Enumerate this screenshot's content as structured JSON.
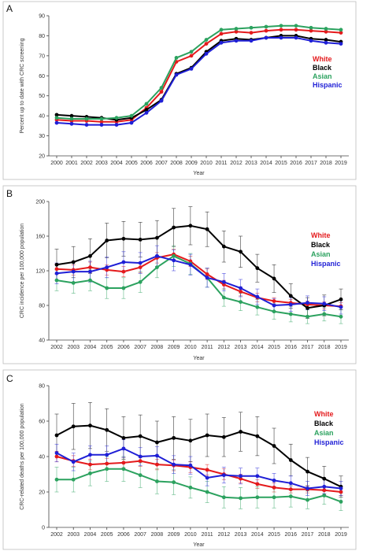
{
  "chart_data": [
    {
      "type": "line",
      "panel": "A",
      "xlabel": "Year",
      "ylabel": "Percent up to date with CRC screening",
      "ylim": [
        20,
        90
      ],
      "yticks": [
        20,
        30,
        40,
        50,
        60,
        70,
        80,
        90
      ],
      "x": [
        2000,
        2001,
        2002,
        2003,
        2004,
        2005,
        2006,
        2007,
        2008,
        2009,
        2010,
        2011,
        2012,
        2013,
        2014,
        2015,
        2016,
        2017,
        2018,
        2019
      ],
      "grid": false,
      "legend": "right",
      "series": [
        {
          "name": "White",
          "color": "#e41a1c",
          "values": [
            38,
            37.5,
            37.5,
            37,
            37,
            38,
            44,
            52,
            67,
            70,
            76,
            81,
            82,
            81.5,
            82.5,
            83,
            83,
            82.5,
            82,
            81.5
          ]
        },
        {
          "name": "Black",
          "color": "#000000",
          "values": [
            40.5,
            40,
            39.5,
            39,
            38,
            39,
            43,
            48,
            61,
            64,
            72,
            77.5,
            78.5,
            78,
            79,
            80,
            80,
            78.5,
            78,
            77
          ]
        },
        {
          "name": "Asian",
          "color": "#2ca25f",
          "values": [
            39,
            38.5,
            38.5,
            38.5,
            39,
            40,
            46,
            54,
            69,
            72,
            78,
            83,
            83.5,
            84,
            84.5,
            85,
            85,
            84,
            83.5,
            83
          ]
        },
        {
          "name": "Hispanic",
          "color": "#1f1fd6",
          "values": [
            36.5,
            36,
            35.5,
            35.5,
            35.5,
            36.5,
            41.5,
            47.5,
            60.5,
            63.5,
            71,
            76.5,
            77.5,
            77.5,
            79,
            79,
            79,
            77.5,
            76.5,
            76
          ]
        }
      ]
    },
    {
      "type": "line",
      "panel": "B",
      "xlabel": "Year",
      "ylabel": "CRC incidence per 100,000 population",
      "ylim": [
        40,
        200
      ],
      "yticks": [
        40,
        80,
        120,
        160,
        200
      ],
      "x": [
        2002,
        2003,
        2004,
        2005,
        2006,
        2007,
        2008,
        2009,
        2010,
        2011,
        2012,
        2013,
        2014,
        2015,
        2016,
        2017,
        2018,
        2019
      ],
      "grid": false,
      "legend": "right",
      "series": [
        {
          "name": "White",
          "color": "#e41a1c",
          "values": [
            122,
            121,
            124,
            121,
            119,
            124,
            135,
            139,
            131,
            116,
            104,
            96,
            89,
            85,
            83,
            81,
            80,
            79
          ],
          "err": [
            6,
            6,
            6,
            6,
            6,
            6,
            6,
            6,
            6,
            6,
            5,
            5,
            5,
            4,
            4,
            4,
            4,
            4
          ]
        },
        {
          "name": "Black",
          "color": "#000000",
          "values": [
            127,
            130,
            137,
            155,
            157,
            156,
            158,
            170,
            172,
            168,
            148,
            142,
            123,
            111,
            91,
            77,
            80,
            87
          ],
          "err": [
            18,
            18,
            20,
            20,
            20,
            20,
            20,
            22,
            22,
            20,
            18,
            18,
            16,
            16,
            14,
            12,
            12,
            12
          ]
        },
        {
          "name": "Asian",
          "color": "#2ca25f",
          "values": [
            109,
            106,
            109,
            100,
            100,
            107,
            124,
            137,
            128,
            112,
            89,
            84,
            78,
            73,
            70,
            67,
            70,
            67
          ],
          "err": [
            12,
            12,
            12,
            12,
            12,
            12,
            12,
            12,
            12,
            11,
            10,
            10,
            9,
            9,
            9,
            8,
            8,
            8
          ]
        },
        {
          "name": "Hispanic",
          "color": "#1f1fd6",
          "values": [
            117,
            119,
            119,
            124,
            130,
            129,
            137,
            132,
            127,
            112,
            107,
            100,
            90,
            80,
            81,
            83,
            82,
            78
          ],
          "err": [
            12,
            12,
            12,
            12,
            12,
            12,
            12,
            12,
            12,
            11,
            10,
            10,
            9,
            8,
            8,
            8,
            8,
            8
          ]
        }
      ]
    },
    {
      "type": "line",
      "panel": "C",
      "xlabel": "Year",
      "ylabel": "CRC-related deaths per 100,000 population",
      "ylim": [
        0,
        80
      ],
      "yticks": [
        0,
        20,
        40,
        60,
        80
      ],
      "x": [
        2002,
        2003,
        2004,
        2005,
        2006,
        2007,
        2008,
        2009,
        2010,
        2011,
        2012,
        2013,
        2014,
        2015,
        2016,
        2017,
        2018,
        2019
      ],
      "grid": false,
      "legend": "right",
      "series": [
        {
          "name": "White",
          "color": "#e41a1c",
          "values": [
            40,
            37.5,
            35.5,
            36,
            36.5,
            37.5,
            35.5,
            35,
            34,
            32.5,
            30,
            27.5,
            24.5,
            22.5,
            21.5,
            21.5,
            21,
            20
          ],
          "err": [
            3,
            3,
            3,
            3,
            3,
            3,
            3,
            3,
            3,
            3,
            3,
            2.5,
            2.5,
            2.5,
            2,
            2,
            2,
            2
          ]
        },
        {
          "name": "Black",
          "color": "#000000",
          "values": [
            52,
            57,
            57.5,
            55,
            50.5,
            51.5,
            48,
            50.5,
            49,
            52,
            51,
            54,
            51.5,
            46,
            38,
            31.5,
            27.5,
            23
          ],
          "err": [
            12,
            13,
            13,
            12,
            12,
            12,
            12,
            12,
            12,
            12,
            11,
            11,
            11,
            10,
            9,
            8,
            7,
            6
          ]
        },
        {
          "name": "Asian",
          "color": "#2ca25f",
          "values": [
            27,
            27,
            30.5,
            33,
            33,
            29.5,
            26,
            25.5,
            22.5,
            20,
            17,
            16.5,
            17,
            17,
            17.5,
            15.5,
            18,
            14.5
          ],
          "err": [
            7,
            7,
            7,
            7,
            7,
            7,
            7,
            7,
            6,
            6,
            6,
            6,
            6,
            6,
            6,
            5,
            5,
            5
          ]
        },
        {
          "name": "Hispanic",
          "color": "#1f1fd6",
          "values": [
            42,
            37,
            41,
            41,
            44.5,
            40,
            40.5,
            35.5,
            35,
            28,
            29.5,
            29,
            29,
            26.5,
            25,
            22,
            23,
            22
          ],
          "err": [
            5,
            5,
            5,
            5,
            5,
            5,
            5,
            5,
            5,
            4.5,
            4.5,
            4.5,
            4.5,
            4,
            4,
            4,
            4,
            4
          ]
        }
      ]
    }
  ]
}
